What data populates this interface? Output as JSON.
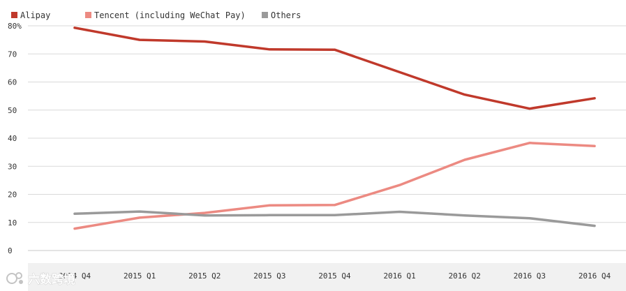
{
  "chart_data": {
    "type": "line",
    "categories": [
      "2014 Q4",
      "2015 Q1",
      "2015 Q2",
      "2015 Q3",
      "2015 Q4",
      "2016 Q1",
      "2016 Q2",
      "2016 Q3",
      "2016 Q4"
    ],
    "series": [
      {
        "name": "Alipay",
        "color": "#c0392b",
        "values": [
          79.3,
          75.0,
          74.4,
          71.6,
          71.5,
          63.5,
          55.5,
          50.5,
          54.2
        ]
      },
      {
        "name": "Tencent (including WeChat Pay)",
        "color": "#ec8a82",
        "values": [
          7.8,
          11.7,
          13.4,
          16.1,
          16.2,
          23.3,
          32.3,
          38.3,
          37.2
        ]
      },
      {
        "name": "Others",
        "color": "#9a9a9a",
        "values": [
          13.1,
          13.9,
          12.5,
          12.6,
          12.6,
          13.8,
          12.5,
          11.5,
          8.8
        ]
      }
    ],
    "y_ticks": [
      "0",
      "10",
      "20",
      "30",
      "40",
      "50",
      "60",
      "70",
      "80%"
    ],
    "ylim": [
      0,
      80
    ],
    "grid": true,
    "legend_position": "top-left",
    "title": "",
    "xlabel": "",
    "ylabel": ""
  },
  "watermark": {
    "text": "六数跨境",
    "icon": "logo-icon"
  }
}
